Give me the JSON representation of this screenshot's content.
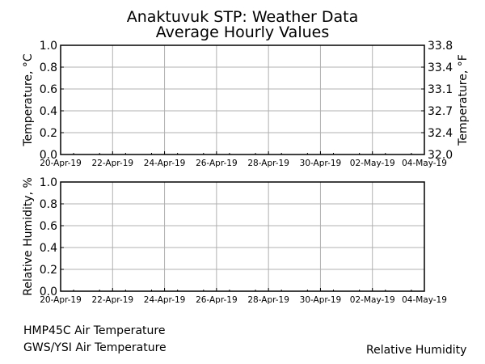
{
  "header": {
    "title": "Anaktuvuk STP: Weather Data",
    "subtitle": "Average Hourly Values"
  },
  "legend": {
    "items": [
      "HMP45C Air Temperature",
      "GWS/YSI Air Temperature",
      "Relative Humidity"
    ]
  },
  "chart_data": [
    {
      "type": "line",
      "ylabel": "Temperature, °C",
      "y2label": "Temperature, °F",
      "x_ticks": [
        "20-Apr-19",
        "22-Apr-19",
        "24-Apr-19",
        "26-Apr-19",
        "28-Apr-19",
        "30-Apr-19",
        "02-May-19",
        "04-May-19"
      ],
      "y_ticks": [
        "0.0",
        "0.2",
        "0.4",
        "0.6",
        "0.8",
        "1.0"
      ],
      "y2_ticks": [
        "32.0",
        "32.4",
        "32.7",
        "33.1",
        "33.4",
        "33.8"
      ],
      "xlim": [
        "20-Apr-19",
        "04-May-19"
      ],
      "ylim": [
        0,
        1
      ],
      "y2lim": [
        32.0,
        33.8
      ],
      "grid": true,
      "series": [
        {
          "name": "HMP45C Air Temperature",
          "values": []
        },
        {
          "name": "GWS/YSI Air Temperature",
          "values": []
        }
      ]
    },
    {
      "type": "line",
      "ylabel": "Relative Humidity, %",
      "x_ticks": [
        "20-Apr-19",
        "22-Apr-19",
        "24-Apr-19",
        "26-Apr-19",
        "28-Apr-19",
        "30-Apr-19",
        "02-May-19",
        "04-May-19"
      ],
      "y_ticks": [
        "0.0",
        "0.2",
        "0.4",
        "0.6",
        "0.8",
        "1.0"
      ],
      "xlim": [
        "20-Apr-19",
        "04-May-19"
      ],
      "ylim": [
        0,
        1
      ],
      "grid": true,
      "series": [
        {
          "name": "Relative Humidity",
          "values": []
        }
      ]
    }
  ]
}
